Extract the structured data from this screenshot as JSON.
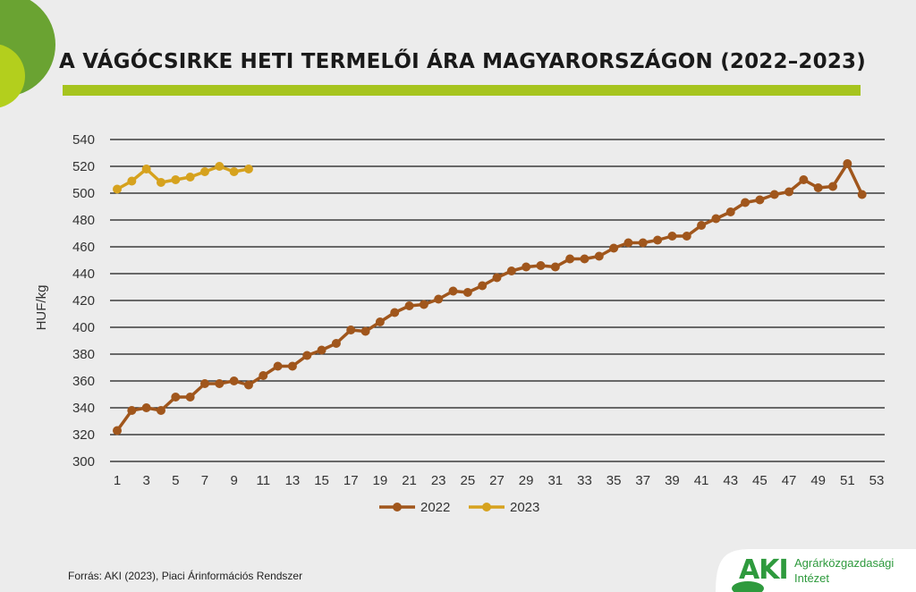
{
  "title": "A VÁGÓCSIRKE HETI TERMELŐI ÁRA MAGYARORSZÁGON (2022–2023)",
  "source": "Forrás: AKI (2023), Piaci Árinformációs Rendszer",
  "logo": {
    "mark": "AKI",
    "name_line1": "Agrárközgazdasági",
    "name_line2": "Intézet"
  },
  "colors": {
    "accent_green": "#a6c41e",
    "logo_green": "#2e9a3d",
    "series_2022": "#a0561c",
    "series_2023": "#d6a21e"
  },
  "chart_data": {
    "type": "line",
    "title": "A VÁGÓCSIRKE HETI TERMELŐI ÁRA MAGYARORSZÁGON (2022–2023)",
    "xlabel": "",
    "ylabel": "HUF/kg",
    "xlim": [
      1,
      53
    ],
    "ylim": [
      300,
      540
    ],
    "x_ticks": [
      1,
      3,
      5,
      7,
      9,
      11,
      13,
      15,
      17,
      19,
      21,
      23,
      25,
      27,
      29,
      31,
      33,
      35,
      37,
      39,
      41,
      43,
      45,
      47,
      49,
      51,
      53
    ],
    "y_ticks": [
      300,
      320,
      340,
      360,
      380,
      400,
      420,
      440,
      460,
      480,
      500,
      520,
      540
    ],
    "grid": "horizontal",
    "legend_position": "bottom",
    "series": [
      {
        "name": "2022",
        "color": "#a0561c",
        "x": [
          1,
          2,
          3,
          4,
          5,
          6,
          7,
          8,
          9,
          10,
          11,
          12,
          13,
          14,
          15,
          16,
          17,
          18,
          19,
          20,
          21,
          22,
          23,
          24,
          25,
          26,
          27,
          28,
          29,
          30,
          31,
          32,
          33,
          34,
          35,
          36,
          37,
          38,
          39,
          40,
          41,
          42,
          43,
          44,
          45,
          46,
          47,
          48,
          49,
          50,
          51,
          52
        ],
        "values": [
          323,
          338,
          340,
          338,
          348,
          348,
          358,
          358,
          360,
          357,
          364,
          371,
          371,
          379,
          383,
          388,
          398,
          397,
          404,
          411,
          416,
          417,
          421,
          427,
          426,
          431,
          437,
          442,
          445,
          446,
          445,
          451,
          451,
          453,
          459,
          463,
          463,
          465,
          468,
          468,
          476,
          481,
          486,
          493,
          495,
          499,
          501,
          510,
          504,
          505,
          522,
          499
        ]
      },
      {
        "name": "2023",
        "color": "#d6a21e",
        "x": [
          1,
          2,
          3,
          4,
          5,
          6,
          7,
          8,
          9,
          10
        ],
        "values": [
          503,
          509,
          518,
          508,
          510,
          512,
          516,
          520,
          516,
          518
        ]
      }
    ]
  }
}
